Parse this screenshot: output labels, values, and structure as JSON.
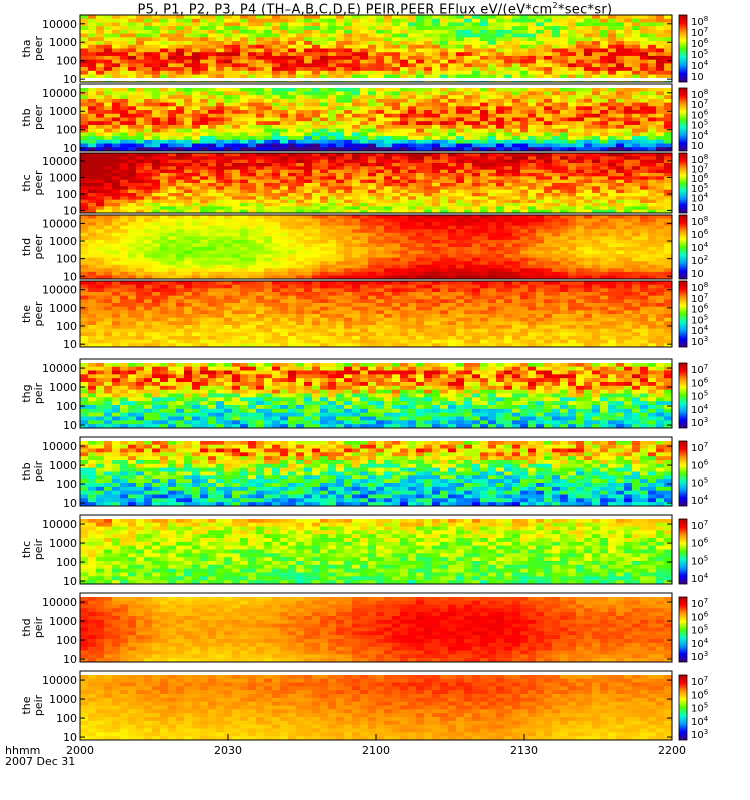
{
  "title": {
    "main": "P5, P1, P2, P3, P4 (TH–A,B,C,D,E) PEIR,PEER EFlux eV/(eV*cm",
    "sup": "2",
    "tail": "*sec*sr)"
  },
  "footer": {
    "line1": "hhmm",
    "line2": "2007 Dec 31"
  },
  "colors": {
    "colormap": [
      "#3c0080",
      "#0000ff",
      "#00a0ff",
      "#00ffc8",
      "#50ff00",
      "#ffff00",
      "#ff9600",
      "#ff0000",
      "#b40000"
    ]
  },
  "chart_data": {
    "type": "heatmap",
    "x_ticks": [
      "2000",
      "2030",
      "2100",
      "2130",
      "2200"
    ],
    "y_ticks": [
      "10",
      "100",
      "1000",
      "10000"
    ],
    "y_scale": "log",
    "panels": [
      {
        "label1": "tha",
        "label2": "peer",
        "ylim": [
          7,
          30000
        ],
        "cbar": [
          "10",
          "10",
          "10",
          "10",
          "10",
          "10"
        ],
        "cbar_exp": [
          "8",
          "7",
          "6",
          "5",
          "4",
          null
        ],
        "profile": [
          5,
          7,
          7.5,
          6,
          5.5,
          6
        ],
        "trend": [
          0,
          0,
          0,
          0,
          -0.5,
          -1,
          0,
          0
        ],
        "noise": 0.5,
        "gap": "bottom"
      },
      {
        "label1": "thb",
        "label2": "peer",
        "ylim": [
          7,
          30000
        ],
        "cbar": [
          "10",
          "10",
          "10",
          "10",
          "10",
          "10"
        ],
        "cbar_exp": [
          "8",
          "7",
          "6",
          "5",
          "4",
          null
        ],
        "profile": [
          1,
          5,
          7,
          7,
          6,
          5.5
        ],
        "trend": [
          0,
          0,
          -0.5,
          -1,
          0,
          0,
          0,
          0
        ],
        "noise": 0.5,
        "gap": "top"
      },
      {
        "label1": "thc",
        "label2": "peer",
        "ylim": [
          7,
          30000
        ],
        "cbar": [
          "10",
          "10",
          "10",
          "10",
          "10",
          "10"
        ],
        "cbar_exp": [
          "8",
          "7",
          "6",
          "5",
          "4",
          null
        ],
        "profile": [
          5,
          6,
          6.5,
          7,
          7.5,
          8
        ],
        "trend": [
          2,
          0,
          0,
          0,
          0,
          0,
          0,
          0
        ],
        "noise": 0.4,
        "gap": "none"
      },
      {
        "label1": "thd",
        "label2": "peer",
        "ylim": [
          7,
          30000
        ],
        "cbar": [
          "10",
          "10",
          "10",
          "10",
          "10"
        ],
        "cbar_exp": [
          "8",
          "6",
          "4",
          "2",
          null
        ],
        "profile": [
          7.5,
          6.5,
          6,
          6.2,
          6.5,
          7
        ],
        "trend": [
          0,
          -1,
          -1,
          0,
          1,
          1,
          0,
          0
        ],
        "noise": 0.15,
        "gap": "none"
      },
      {
        "label1": "the",
        "label2": "peer",
        "ylim": [
          7,
          30000
        ],
        "cbar": [
          "10",
          "10",
          "10",
          "10",
          "10",
          "10"
        ],
        "cbar_exp": [
          "8",
          "7",
          "6",
          "5",
          "4",
          "3"
        ],
        "profile": [
          6,
          6.2,
          6.5,
          6.8,
          7,
          7.5
        ],
        "trend": [
          0,
          0,
          -0.3,
          0,
          0,
          0,
          0,
          0
        ],
        "noise": 0.2,
        "gap": "none"
      },
      {
        "label1": "thg",
        "label2": "peir",
        "ylim": [
          7,
          30000
        ],
        "cbar": [
          "10",
          "10",
          "10",
          "10",
          "10"
        ],
        "cbar_exp": [
          "7",
          "6",
          "5",
          "4",
          "3"
        ],
        "profile": [
          3.5,
          4,
          4.5,
          6.5,
          7,
          5
        ],
        "trend": [
          0,
          0,
          0,
          0,
          0,
          0,
          0,
          0
        ],
        "noise": 0.6,
        "gap": "top"
      },
      {
        "label1": "thb",
        "label2": "peir",
        "ylim": [
          7,
          30000
        ],
        "cbar": [
          "10",
          "10",
          "10",
          "10"
        ],
        "cbar_exp": [
          "7",
          "6",
          "5",
          "4"
        ],
        "profile": [
          3,
          3.5,
          4,
          5,
          6.5,
          5.5
        ],
        "trend": [
          0,
          0,
          0.5,
          0,
          0,
          0,
          0,
          0
        ],
        "noise": 0.6,
        "gap": "top"
      },
      {
        "label1": "thc",
        "label2": "peir",
        "ylim": [
          7,
          30000
        ],
        "cbar": [
          "10",
          "10",
          "10",
          "10"
        ],
        "cbar_exp": [
          "7",
          "6",
          "5",
          "4"
        ],
        "profile": [
          4.5,
          4.8,
          5,
          5.2,
          5.5,
          6.5
        ],
        "trend": [
          0.5,
          0,
          0,
          0,
          0,
          0,
          0,
          0
        ],
        "noise": 0.35,
        "gap": "top"
      },
      {
        "label1": "thd",
        "label2": "peir",
        "ylim": [
          7,
          30000
        ],
        "cbar": [
          "10",
          "10",
          "10",
          "10",
          "10"
        ],
        "cbar_exp": [
          "7",
          "6",
          "5",
          "4",
          "3"
        ],
        "profile": [
          6.5,
          6.8,
          7,
          7,
          6.8,
          6.5
        ],
        "trend": [
          0.5,
          -0.5,
          -0.5,
          0,
          0.6,
          0.6,
          0,
          0
        ],
        "noise": 0.1,
        "gap": "top"
      },
      {
        "label1": "the",
        "label2": "peir",
        "ylim": [
          7,
          30000
        ],
        "cbar": [
          "10",
          "10",
          "10",
          "10",
          "10"
        ],
        "cbar_exp": [
          "7",
          "6",
          "5",
          "4",
          "3"
        ],
        "profile": [
          6,
          6.2,
          6.4,
          6.6,
          6.8,
          6.5
        ],
        "trend": [
          -0.3,
          0,
          0,
          0.2,
          0.4,
          0.4,
          0,
          0
        ],
        "noise": 0.1,
        "gap": "top"
      }
    ]
  }
}
